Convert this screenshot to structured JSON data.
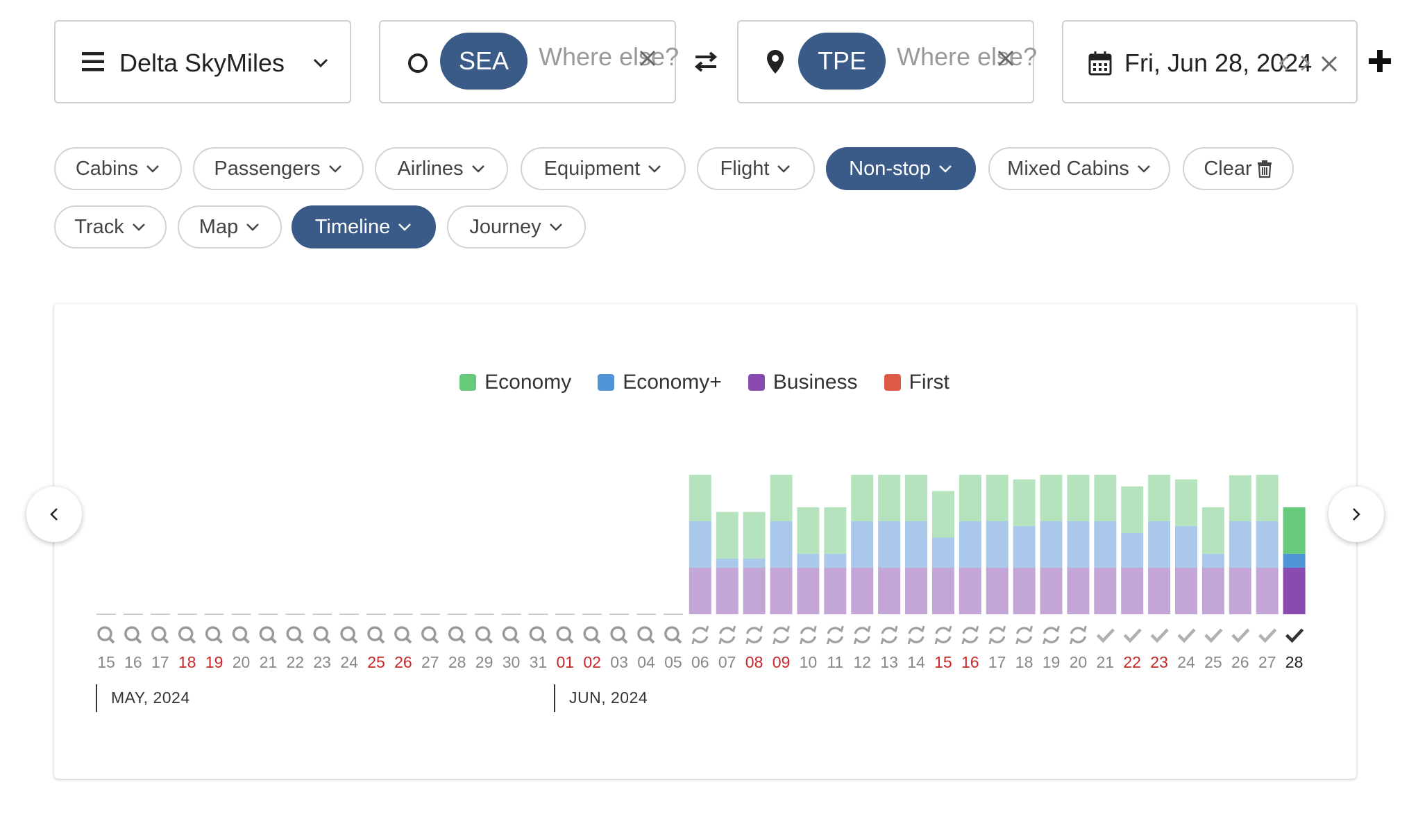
{
  "program": {
    "label": "Delta SkyMiles"
  },
  "origin": {
    "code": "SEA",
    "placeholder": "Where else?"
  },
  "destination": {
    "code": "TPE",
    "placeholder": "Where else?"
  },
  "date": {
    "label": "Fri, Jun 28, 2024"
  },
  "filters": {
    "row1": [
      {
        "label": "Cabins",
        "active": false
      },
      {
        "label": "Passengers",
        "active": false
      },
      {
        "label": "Airlines",
        "active": false
      },
      {
        "label": "Equipment",
        "active": false
      },
      {
        "label": "Flight",
        "active": false
      },
      {
        "label": "Non-stop",
        "active": true
      },
      {
        "label": "Mixed Cabins",
        "active": false
      },
      {
        "label": "Clear",
        "active": false
      }
    ],
    "row2": [
      {
        "label": "Track",
        "active": false
      },
      {
        "label": "Map",
        "active": false
      },
      {
        "label": "Timeline",
        "active": true
      },
      {
        "label": "Journey",
        "active": false
      }
    ]
  },
  "legend": [
    {
      "label": "Economy",
      "color": "#67c97a"
    },
    {
      "label": "Economy+",
      "color": "#4f95d8"
    },
    {
      "label": "Business",
      "color": "#8a4bb0"
    },
    {
      "label": "First",
      "color": "#dc5a46"
    }
  ],
  "months": [
    "MAY, 2024",
    "JUN, 2024"
  ],
  "chart_data": {
    "type": "bar",
    "stacked": true,
    "categories": [
      "15",
      "16",
      "17",
      "18",
      "19",
      "20",
      "21",
      "22",
      "23",
      "24",
      "25",
      "26",
      "27",
      "28",
      "29",
      "30",
      "31",
      "01",
      "02",
      "03",
      "04",
      "05",
      "06",
      "07",
      "08",
      "09",
      "10",
      "11",
      "12",
      "13",
      "14",
      "15",
      "16",
      "17",
      "18",
      "19",
      "20",
      "21",
      "22",
      "23",
      "24",
      "25",
      "26",
      "27",
      "28"
    ],
    "weekend_flags": [
      false,
      false,
      false,
      true,
      true,
      false,
      false,
      false,
      false,
      false,
      true,
      true,
      false,
      false,
      false,
      false,
      false,
      true,
      true,
      false,
      false,
      false,
      false,
      false,
      true,
      true,
      false,
      false,
      false,
      false,
      false,
      true,
      true,
      false,
      false,
      false,
      false,
      false,
      true,
      true,
      false,
      false,
      false,
      false,
      false
    ],
    "status": [
      "search",
      "search",
      "search",
      "search",
      "search",
      "search",
      "search",
      "search",
      "search",
      "search",
      "search",
      "search",
      "search",
      "search",
      "search",
      "search",
      "search",
      "search",
      "search",
      "search",
      "search",
      "search",
      "refresh",
      "refresh",
      "refresh",
      "refresh",
      "refresh",
      "refresh",
      "refresh",
      "refresh",
      "refresh",
      "refresh",
      "refresh",
      "refresh",
      "refresh",
      "refresh",
      "refresh",
      "check",
      "check",
      "check",
      "check",
      "check",
      "check",
      "check",
      "check"
    ],
    "selected_index": 44,
    "series": [
      {
        "name": "Business",
        "values": [
          0,
          0,
          0,
          0,
          0,
          0,
          0,
          0,
          0,
          0,
          0,
          0,
          0,
          0,
          0,
          0,
          0,
          0,
          0,
          0,
          0,
          0,
          1,
          1,
          1,
          1,
          1,
          1,
          1,
          1,
          1,
          1,
          1,
          1,
          1,
          1,
          1,
          1,
          1,
          1,
          1,
          1,
          1,
          1,
          1
        ]
      },
      {
        "name": "Economy+",
        "values": [
          0,
          0,
          0,
          0,
          0,
          0,
          0,
          0,
          0,
          0,
          0,
          0,
          0,
          0,
          0,
          0,
          0,
          0,
          0,
          0,
          0,
          0,
          1,
          0.2,
          0.2,
          1,
          0.3,
          0.3,
          1,
          1,
          1,
          0.65,
          1,
          1,
          0.9,
          1,
          1,
          1,
          0.75,
          1,
          0.9,
          0.3,
          1,
          1,
          0.3
        ]
      },
      {
        "name": "Economy",
        "values": [
          0,
          0,
          0,
          0,
          0,
          0,
          0,
          0,
          0,
          0,
          0,
          0,
          0,
          0,
          0,
          0,
          0,
          0,
          0,
          0,
          0,
          0,
          1,
          1,
          1,
          1,
          1,
          1,
          1,
          1,
          1,
          1,
          1,
          1,
          1,
          1,
          1,
          1,
          1,
          1,
          1,
          1,
          0.99,
          1,
          1
        ]
      }
    ],
    "ylim": [
      0,
      3
    ]
  }
}
